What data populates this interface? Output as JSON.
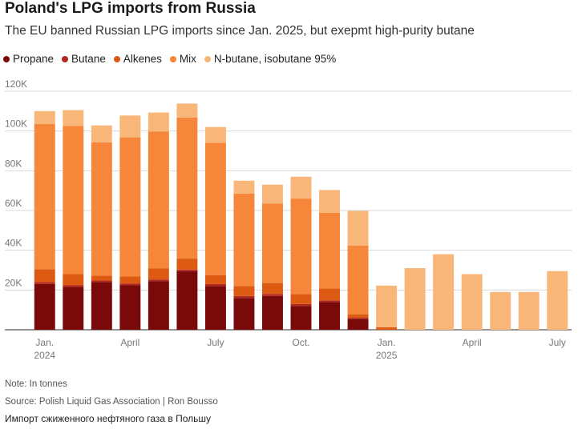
{
  "title": "Poland's LPG imports from Russia",
  "subtitle": "The EU banned Russian LPG imports since Jan. 2025, but exepmt high-purity butane",
  "note": "Note: In tonnes",
  "source": "Source: Polish Liquid Gas Association | Ron Bousso",
  "caption": "Импорт сжиженного нефтяного газа в Польшу",
  "chart_data": {
    "type": "bar",
    "stacked": true,
    "title": "Poland's LPG imports from Russia",
    "xlabel": "",
    "ylabel": "",
    "ylim": [
      0,
      120000
    ],
    "y_ticks": [
      0,
      20000,
      40000,
      60000,
      80000,
      100000,
      120000
    ],
    "y_tick_labels": [
      "",
      "20K",
      "40K",
      "60K",
      "80K",
      "100K",
      "120K"
    ],
    "grid": true,
    "legend_position": "top-left",
    "categories": [
      "2024-01",
      "2024-02",
      "2024-03",
      "2024-04",
      "2024-05",
      "2024-06",
      "2024-07",
      "2024-08",
      "2024-09",
      "2024-10",
      "2024-11",
      "2024-12",
      "2025-01",
      "2025-02",
      "2025-03",
      "2025-04",
      "2025-05",
      "2025-06",
      "2025-07"
    ],
    "x_tick_labels": [
      {
        "index": 0,
        "line1": "Jan.",
        "line2": "2024"
      },
      {
        "index": 3,
        "line1": "April",
        "line2": ""
      },
      {
        "index": 6,
        "line1": "July",
        "line2": ""
      },
      {
        "index": 9,
        "line1": "Oct.",
        "line2": ""
      },
      {
        "index": 12,
        "line1": "Jan.",
        "line2": "2025"
      },
      {
        "index": 15,
        "line1": "April",
        "line2": ""
      },
      {
        "index": 18,
        "line1": "July",
        "line2": ""
      }
    ],
    "series": [
      {
        "name": "Propane",
        "color": "#7a0a0a",
        "values": [
          23000,
          21500,
          24000,
          22500,
          24500,
          29500,
          22000,
          16000,
          17000,
          12000,
          14000,
          5500,
          0,
          0,
          0,
          0,
          0,
          0,
          0
        ]
      },
      {
        "name": "Butane",
        "color": "#b3261e",
        "values": [
          1000,
          1000,
          800,
          800,
          800,
          800,
          1000,
          1000,
          1000,
          1000,
          800,
          500,
          0,
          0,
          0,
          0,
          0,
          0,
          0
        ]
      },
      {
        "name": "Alkenes",
        "color": "#dd5a12",
        "values": [
          6500,
          5500,
          2500,
          3500,
          5500,
          5500,
          4500,
          5000,
          5500,
          5000,
          6000,
          1800,
          1200,
          0,
          0,
          0,
          0,
          0,
          0
        ]
      },
      {
        "name": "Mix",
        "color": "#f5863a",
        "values": [
          73000,
          74500,
          67000,
          70000,
          69000,
          71000,
          66500,
          46500,
          40000,
          48000,
          38000,
          34500,
          0,
          0,
          0,
          0,
          0,
          0,
          0
        ]
      },
      {
        "name": "N-butane, isobutane 95%",
        "color": "#f9b679",
        "values": [
          6500,
          8000,
          8500,
          11000,
          9500,
          7000,
          8000,
          6500,
          9500,
          11000,
          11500,
          17500,
          21000,
          31000,
          38000,
          28000,
          19000,
          19000,
          29500
        ]
      }
    ]
  }
}
